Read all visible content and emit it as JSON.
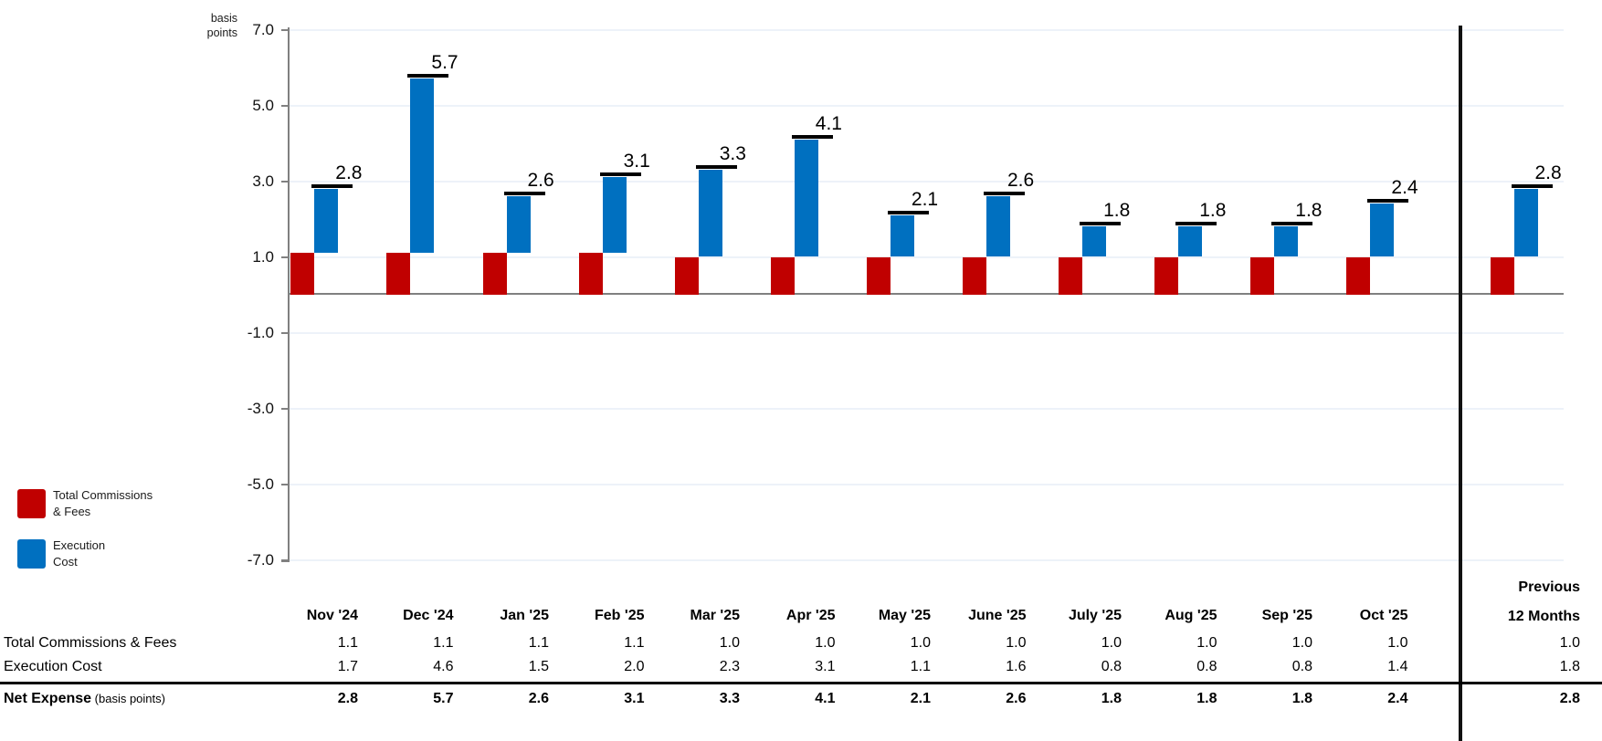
{
  "chart": {
    "y_axis_unit_label": "basis points",
    "legend": [
      {
        "name": "Total Commissions & Fees",
        "label_lines": [
          "Total Commissions",
          "& Fees"
        ],
        "color": "#C00000"
      },
      {
        "name": "Execution Cost",
        "label_lines": [
          "Execution",
          "Cost"
        ],
        "color": "#0070C0"
      }
    ]
  },
  "chart_data": {
    "type": "bar",
    "stacked": true,
    "title": "",
    "ylabel": "basis points",
    "categories": [
      "Nov '24",
      "Dec '24",
      "Jan '25",
      "Feb '25",
      "Mar '25",
      "Apr '25",
      "May '25",
      "June '25",
      "July '25",
      "Aug '25",
      "Sep '25",
      "Oct '25",
      "Previous 12 Months"
    ],
    "series": [
      {
        "name": "Total Commissions & Fees",
        "color": "#C00000",
        "values": [
          1.1,
          1.1,
          1.1,
          1.1,
          1.0,
          1.0,
          1.0,
          1.0,
          1.0,
          1.0,
          1.0,
          1.0,
          1.0
        ]
      },
      {
        "name": "Execution Cost",
        "color": "#0070C0",
        "values": [
          1.7,
          4.6,
          1.5,
          2.0,
          2.3,
          3.1,
          1.1,
          1.6,
          0.8,
          0.8,
          0.8,
          1.4,
          1.8
        ]
      }
    ],
    "totals": [
      2.8,
      5.7,
      2.6,
      3.1,
      3.3,
      4.1,
      2.1,
      2.6,
      1.8,
      1.8,
      1.8,
      2.4,
      2.8
    ],
    "total_labels": [
      "2.8",
      "5.7",
      "2.6",
      "3.1",
      "3.3",
      "4.1",
      "2.1",
      "2.6",
      "1.8",
      "1.8",
      "1.8",
      "2.4",
      "2.8"
    ],
    "ylim": [
      -7.0,
      7.0
    ],
    "yticks": [
      7,
      5,
      3,
      1,
      -1,
      -3,
      -5,
      -7
    ],
    "ytick_labels": [
      "7.0",
      "5.0",
      "3.0",
      "1.0",
      "-1.0",
      "-3.0",
      "-5.0",
      "-7.0"
    ],
    "grid": true,
    "legend_position": "bottom-left",
    "separator_before_category": "Previous 12 Months",
    "total_marker_color": "#000000",
    "gridline_color": "#edf2f9",
    "axis_color": "#808080"
  },
  "table": {
    "month_columns": [
      "Nov '24",
      "Dec '24",
      "Jan '25",
      "Feb '25",
      "Mar '25",
      "Apr '25",
      "May '25",
      "June '25",
      "July '25",
      "Aug '25",
      "Sep '25",
      "Oct '25"
    ],
    "last_column_lines": [
      "Previous",
      "12 Months"
    ],
    "rows": [
      {
        "label": "Total Commissions & Fees",
        "label_suffix": "",
        "bold": false,
        "values": [
          "1.1",
          "1.1",
          "1.1",
          "1.1",
          "1.0",
          "1.0",
          "1.0",
          "1.0",
          "1.0",
          "1.0",
          "1.0",
          "1.0"
        ],
        "previous": "1.0"
      },
      {
        "label": "Execution Cost",
        "label_suffix": "",
        "bold": false,
        "values": [
          "1.7",
          "4.6",
          "1.5",
          "2.0",
          "2.3",
          "3.1",
          "1.1",
          "1.6",
          "0.8",
          "0.8",
          "0.8",
          "1.4"
        ],
        "previous": "1.8"
      },
      {
        "label": "Net Expense",
        "label_suffix": "(basis points)",
        "bold": true,
        "values": [
          "2.8",
          "5.7",
          "2.6",
          "3.1",
          "3.3",
          "4.1",
          "2.1",
          "2.6",
          "1.8",
          "1.8",
          "1.8",
          "2.4"
        ],
        "previous": "2.8"
      }
    ]
  }
}
